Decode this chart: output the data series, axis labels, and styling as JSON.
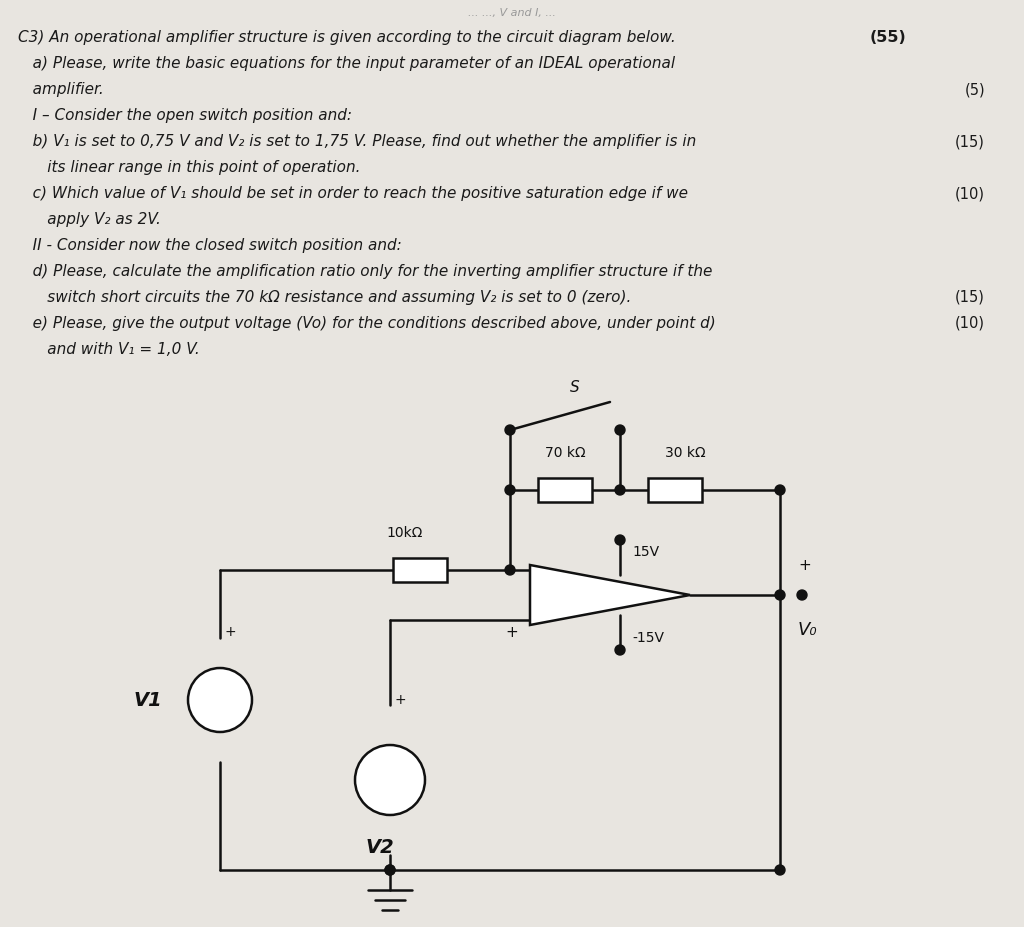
{
  "bg_color": "#e8e5e0",
  "text_color": "#1a1a1a",
  "lw": 1.8,
  "black": "#111111",
  "title": "C3) An operational amplifier structure is given according to the circuit diagram below.",
  "score_total": "(55)",
  "text_lines": [
    [
      "   a) Please, write the basic equations for the input parameter of an IDEAL operational",
      ""
    ],
    [
      "   amplifier.",
      "(5)"
    ],
    [
      "   I – Consider the open switch position and:",
      ""
    ],
    [
      "   b) V₁ is set to 0,75 V and V₂ is set to 1,75 V. Please, find out whether the amplifier is in",
      "(15)"
    ],
    [
      "      its linear range in this point of operation.",
      ""
    ],
    [
      "   c) Which value of V₁ should be set in order to reach the positive saturation edge if we",
      "(10)"
    ],
    [
      "      apply V₂ as 2V.",
      ""
    ],
    [
      "   II - Consider now the closed switch position and:",
      ""
    ],
    [
      "   d) Please, calculate the amplification ratio only for the inverting amplifier structure if the",
      ""
    ],
    [
      "      switch short circuits the 70 kΩ resistance and assuming V₂ is set to 0 (zero).",
      "(15)"
    ],
    [
      "   e) Please, give the output voltage (Vo) for the conditions described above, under point d)",
      "(10)"
    ],
    [
      "      and with V₁ = 1,0 V.",
      ""
    ]
  ],
  "font_size_text": 11.0,
  "font_size_score": 10.5
}
